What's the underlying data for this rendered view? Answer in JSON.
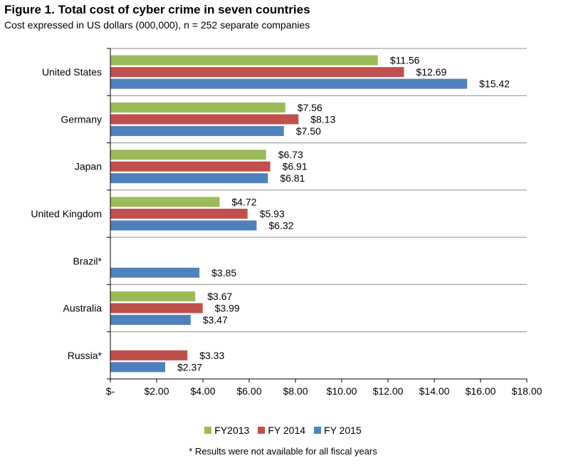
{
  "title": "Figure 1.  Total cost of cyber crime in seven countries",
  "subtitle": "Cost expressed in US dollars (000,000), n = 252 separate companies",
  "footnote": "* Results were not available for all fiscal years",
  "chart_data": {
    "type": "bar",
    "orientation": "horizontal",
    "categories": [
      "United States",
      "Germany",
      "Japan",
      "United Kingdom",
      "Brazil*",
      "Australia",
      "Russia*"
    ],
    "series": [
      {
        "name": "FY2013",
        "color": "#9bbb59",
        "values": [
          11.56,
          7.56,
          6.73,
          4.72,
          null,
          3.67,
          null
        ],
        "labels": [
          "$11.56",
          "$7.56",
          "$6.73",
          "$4.72",
          null,
          "$3.67",
          null
        ]
      },
      {
        "name": "FY 2014",
        "color": "#c0504d",
        "values": [
          12.69,
          8.13,
          6.91,
          5.93,
          null,
          3.99,
          3.33
        ],
        "labels": [
          "$12.69",
          "$8.13",
          "$6.91",
          "$5.93",
          null,
          "$3.99",
          "$3.33"
        ]
      },
      {
        "name": "FY 2015",
        "color": "#4f81bd",
        "values": [
          15.42,
          7.5,
          6.81,
          6.32,
          3.85,
          3.47,
          2.37
        ],
        "labels": [
          "$15.42",
          "$7.50",
          "$6.81",
          "$6.32",
          "$3.85",
          "$3.47",
          "$2.37"
        ]
      }
    ],
    "xlim": [
      0,
      18
    ],
    "xticks": [
      0,
      2,
      4,
      6,
      8,
      10,
      12,
      14,
      16,
      18
    ],
    "xtick_labels": [
      "$-",
      "$2.00",
      "$4.00",
      "$6.00",
      "$8.00",
      "$10.00",
      "$12.00",
      "$14.00",
      "$16.00",
      "$18.00"
    ],
    "legend_position": "bottom",
    "grid": "horizontal separators between categories"
  }
}
